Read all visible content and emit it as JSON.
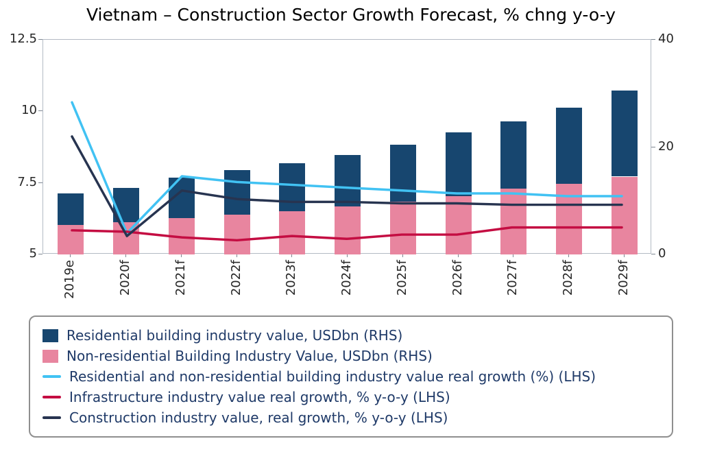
{
  "title": "Vietnam – Construction Sector Growth Forecast, % chng y-o-y",
  "chart_data": {
    "type": "bar",
    "subtype": "stacked-bars-with-lines",
    "categories": [
      "2019e",
      "2020f",
      "2021f",
      "2022f",
      "2023f",
      "2024f",
      "2025f",
      "2026f",
      "2027f",
      "2028f",
      "2029f"
    ],
    "series": [
      {
        "key": "residential",
        "name": "Residential building industry value, USDbn (RHS)",
        "type": "bar",
        "axis": "rhs",
        "color": "#17466f",
        "values": [
          5.9,
          6.4,
          7.5,
          8.3,
          9.0,
          9.6,
          10.6,
          11.8,
          12.5,
          14.1,
          16.0
        ]
      },
      {
        "key": "non-residential",
        "name": "Non-residential Building Industry Value, USDbn (RHS)",
        "type": "bar",
        "axis": "rhs",
        "color": "#e8859f",
        "values": [
          5.5,
          6.0,
          6.8,
          7.4,
          8.0,
          8.9,
          9.8,
          10.9,
          12.3,
          13.2,
          14.5
        ]
      },
      {
        "key": "building-growth",
        "name": "Residential and non-residential building industry value real growth (%) (LHS)",
        "type": "line",
        "axis": "lhs",
        "color": "#41c2f3",
        "values": [
          10.3,
          5.7,
          7.7,
          7.5,
          7.4,
          7.3,
          7.2,
          7.1,
          7.1,
          7.0,
          7.0
        ]
      },
      {
        "key": "infrastructure-growth",
        "name": "Infrastructure industry value real growth, % y-o-y (LHS)",
        "type": "line",
        "axis": "lhs",
        "color": "#c40d42",
        "values": [
          5.8,
          5.75,
          5.55,
          5.45,
          5.6,
          5.5,
          5.65,
          5.65,
          5.9,
          5.9,
          5.9
        ]
      },
      {
        "key": "construction-growth",
        "name": "Construction industry value, real growth, % y-o-y (LHS)",
        "type": "line",
        "axis": "lhs",
        "color": "#273450",
        "values": [
          9.1,
          5.6,
          7.2,
          6.9,
          6.8,
          6.8,
          6.75,
          6.75,
          6.7,
          6.7,
          6.7
        ]
      }
    ],
    "lhs_axis": {
      "range": [
        5,
        12.5
      ],
      "ticks": [
        "12.5",
        "10",
        "7.5",
        "5"
      ]
    },
    "rhs_axis": {
      "range": [
        0,
        40
      ],
      "ticks": [
        "40",
        "20",
        "0"
      ]
    },
    "stacked": true,
    "grid": false,
    "legend_position": "bottom"
  }
}
